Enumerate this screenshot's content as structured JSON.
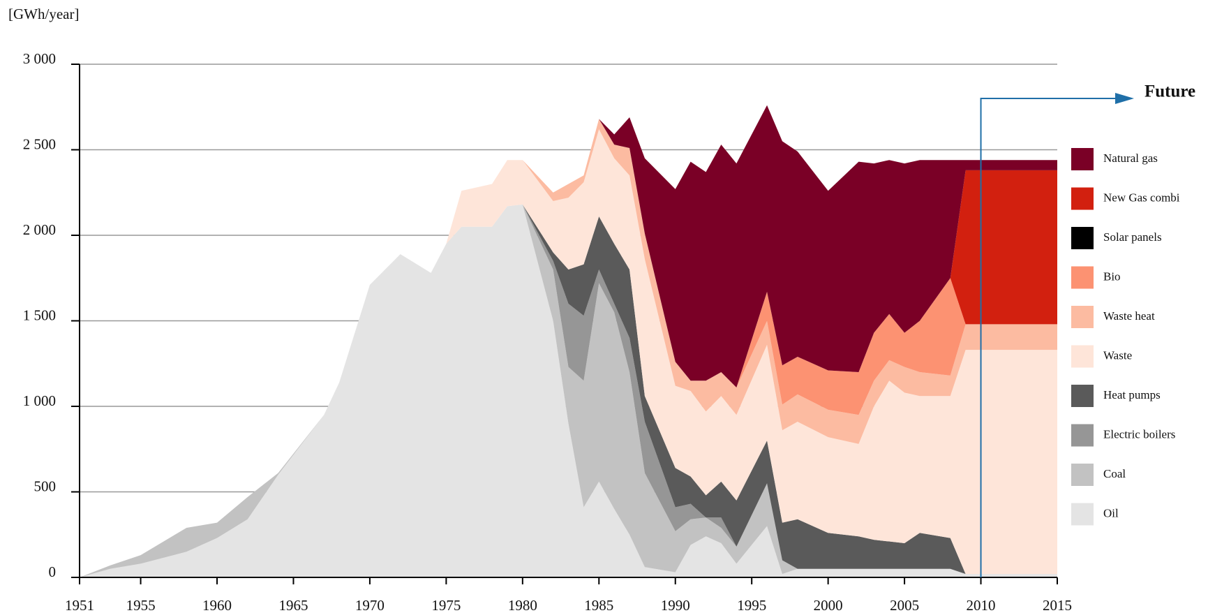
{
  "chart_data": {
    "type": "stacked_area",
    "y_label": "[GWh/year]",
    "annotation": "Future",
    "annotation_x": 2010,
    "x": [
      1951,
      1953,
      1955,
      1958,
      1960,
      1962,
      1964,
      1967,
      1968,
      1970,
      1972,
      1974,
      1975,
      1976,
      1978,
      1979,
      1980,
      1982,
      1983,
      1984,
      1985,
      1986,
      1987,
      1988,
      1990,
      1991,
      1992,
      1993,
      1994,
      1996,
      1997,
      1998,
      2000,
      2002,
      2003,
      2004,
      2005,
      2006,
      2008,
      2009,
      2015
    ],
    "xlim": [
      1951,
      2015
    ],
    "xticks": [
      1951,
      1955,
      1960,
      1965,
      1970,
      1975,
      1980,
      1985,
      1990,
      1995,
      2000,
      2005,
      2010,
      2015
    ],
    "ylim": [
      0,
      3000
    ],
    "yticks": [
      0,
      500,
      {
        "value": 1000,
        "label": "1 000"
      },
      {
        "value": 1500,
        "label": "1 500"
      },
      {
        "value": 2000,
        "label": "2 000"
      },
      {
        "value": 2500,
        "label": "2 500"
      },
      {
        "value": 3000,
        "label": "3 000"
      }
    ],
    "grid": true,
    "legend": "right",
    "series": [
      {
        "name": "Natural gas",
        "color": "#7a0026",
        "values": [
          0,
          0,
          0,
          0,
          0,
          0,
          0,
          0,
          0,
          0,
          0,
          0,
          0,
          0,
          0,
          0,
          0,
          0,
          0,
          0,
          0,
          60,
          180,
          440,
          1010,
          1280,
          1220,
          1330,
          1310,
          1090,
          1310,
          1200,
          1050,
          1230,
          990,
          900,
          990,
          940,
          690,
          60,
          60
        ]
      },
      {
        "name": "New Gas combi",
        "color": "#d2200f",
        "values": [
          0,
          0,
          0,
          0,
          0,
          0,
          0,
          0,
          0,
          0,
          0,
          0,
          0,
          0,
          0,
          0,
          0,
          0,
          0,
          0,
          0,
          0,
          0,
          0,
          0,
          0,
          0,
          0,
          0,
          0,
          0,
          0,
          0,
          0,
          0,
          0,
          0,
          0,
          0,
          900,
          900
        ]
      },
      {
        "name": "Solar panels",
        "color": "#000000",
        "values": [
          0,
          0,
          0,
          0,
          0,
          0,
          0,
          0,
          0,
          0,
          0,
          0,
          0,
          0,
          0,
          0,
          0,
          0,
          0,
          0,
          0,
          0,
          0,
          0,
          0,
          0,
          0,
          0,
          0,
          0,
          0,
          0,
          0,
          0,
          0,
          0,
          0,
          0,
          0,
          0,
          0
        ]
      },
      {
        "name": "Bio",
        "color": "#fc9272",
        "values": [
          0,
          0,
          0,
          0,
          0,
          0,
          0,
          0,
          0,
          0,
          0,
          0,
          0,
          0,
          0,
          0,
          0,
          0,
          0,
          0,
          0,
          0,
          0,
          0,
          0,
          0,
          0,
          0,
          0,
          170,
          230,
          220,
          230,
          250,
          280,
          270,
          200,
          300,
          570,
          0,
          0
        ]
      },
      {
        "name": "Waste heat",
        "color": "#fcbba1",
        "values": [
          0,
          0,
          0,
          0,
          0,
          0,
          0,
          0,
          0,
          0,
          0,
          0,
          0,
          0,
          0,
          0,
          0,
          50,
          80,
          40,
          60,
          80,
          160,
          150,
          140,
          60,
          180,
          140,
          160,
          140,
          150,
          160,
          160,
          170,
          150,
          120,
          150,
          140,
          120,
          150,
          150
        ]
      },
      {
        "name": "Waste",
        "color": "#fee5d9",
        "values": [
          0,
          0,
          0,
          0,
          0,
          0,
          0,
          0,
          0,
          0,
          0,
          0,
          0,
          210,
          250,
          270,
          260,
          300,
          420,
          480,
          510,
          500,
          550,
          800,
          480,
          500,
          490,
          500,
          500,
          560,
          540,
          570,
          560,
          540,
          780,
          940,
          880,
          800,
          830,
          1310,
          1310
        ]
      },
      {
        "name": "Heat pumps",
        "color": "#5a5a5a",
        "values": [
          0,
          0,
          0,
          0,
          0,
          0,
          0,
          0,
          0,
          0,
          0,
          0,
          0,
          0,
          0,
          0,
          0,
          50,
          200,
          300,
          310,
          350,
          400,
          150,
          230,
          160,
          130,
          210,
          270,
          250,
          220,
          290,
          210,
          190,
          170,
          160,
          150,
          210,
          180,
          0,
          0
        ]
      },
      {
        "name": "Electric boilers",
        "color": "#969696",
        "values": [
          0,
          0,
          0,
          0,
          0,
          0,
          0,
          0,
          0,
          0,
          0,
          0,
          0,
          0,
          0,
          0,
          0,
          50,
          370,
          380,
          80,
          50,
          200,
          300,
          140,
          90,
          0,
          60,
          0,
          0,
          0,
          0,
          0,
          0,
          0,
          0,
          0,
          0,
          0,
          0,
          0
        ]
      },
      {
        "name": "Coal",
        "color": "#c2c2c2",
        "values": [
          0,
          20,
          50,
          140,
          90,
          130,
          10,
          0,
          0,
          0,
          0,
          0,
          0,
          0,
          0,
          0,
          0,
          300,
          330,
          740,
          1160,
          1150,
          950,
          550,
          240,
          150,
          110,
          90,
          100,
          250,
          80,
          0,
          0,
          0,
          0,
          0,
          0,
          0,
          0,
          0,
          0
        ]
      },
      {
        "name": "Oil",
        "color": "#e4e4e4",
        "values": [
          0,
          50,
          80,
          150,
          230,
          340,
          600,
          950,
          1140,
          1710,
          1890,
          1780,
          1950,
          2050,
          2050,
          2170,
          2180,
          1500,
          900,
          410,
          560,
          400,
          250,
          60,
          30,
          190,
          240,
          200,
          80,
          300,
          20,
          50,
          50,
          50,
          50,
          50,
          50,
          50,
          50,
          20,
          20
        ]
      }
    ]
  }
}
